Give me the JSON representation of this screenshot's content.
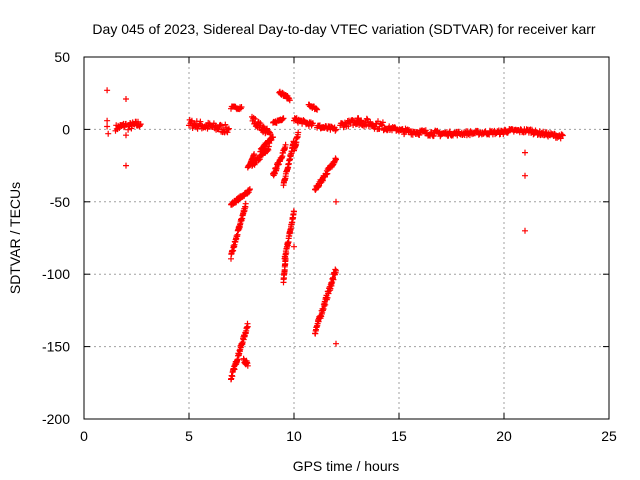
{
  "chart_data": {
    "type": "scatter",
    "title": "Day 045 of 2023, Sidereal Day-to-day VTEC variation (SDTVAR) for receiver karr",
    "xlabel": "GPS time / hours",
    "ylabel": "SDTVAR / TECUs",
    "xlim": [
      0,
      25
    ],
    "ylim": [
      -200,
      50
    ],
    "xticks": [
      0,
      5,
      10,
      15,
      20,
      25
    ],
    "yticks": [
      50,
      0,
      -50,
      -100,
      -150,
      -200
    ],
    "xtick_labels": [
      "0",
      "5",
      "10",
      "15",
      "20",
      "25"
    ],
    "ytick_labels": [
      "50",
      "0",
      "-50",
      "-100",
      "-150",
      "-200"
    ],
    "grid": true,
    "marker": "+",
    "marker_color": "#ff0000",
    "series": [
      {
        "name": "SDTVAR",
        "points": [
          [
            1.1,
            27
          ],
          [
            1.1,
            6
          ],
          [
            1.1,
            2
          ],
          [
            1.15,
            -3
          ],
          [
            2.0,
            21
          ],
          [
            2.0,
            -4
          ],
          [
            2.0,
            -25
          ],
          [
            10.0,
            -81
          ],
          [
            12.0,
            -50
          ],
          [
            12.0,
            -148
          ],
          [
            21.0,
            -16
          ],
          [
            21.0,
            -32
          ],
          [
            21.0,
            -70
          ]
        ],
        "segments": [
          {
            "x0": 1.5,
            "x1": 2.0,
            "y0": 1,
            "y1": 3,
            "spread": 4
          },
          {
            "x0": 2.1,
            "x1": 2.7,
            "y0": 2,
            "y1": 4,
            "spread": 5
          },
          {
            "x0": 5.0,
            "x1": 6.9,
            "y0": 4,
            "y1": 0,
            "spread": 6
          },
          {
            "x0": 7.0,
            "x1": 7.5,
            "y0": 15,
            "y1": 15,
            "spread": 2
          },
          {
            "x0": 7.0,
            "x1": 7.9,
            "y0": -52,
            "y1": -42,
            "spread": 2
          },
          {
            "x0": 7.0,
            "x1": 7.7,
            "y0": -88,
            "y1": -52,
            "spread": 3
          },
          {
            "x0": 7.0,
            "x1": 7.8,
            "y0": -172,
            "y1": -135,
            "spread": 3
          },
          {
            "x0": 7.6,
            "x1": 7.8,
            "y0": -158,
            "y1": -163,
            "spread": 4
          },
          {
            "x0": 7.8,
            "x1": 8.1,
            "y0": -27,
            "y1": -18,
            "spread": 2
          },
          {
            "x0": 8.0,
            "x1": 8.8,
            "y0": -25,
            "y1": -13,
            "spread": 3
          },
          {
            "x0": 8.0,
            "x1": 8.9,
            "y0": 7,
            "y1": -4,
            "spread": 5
          },
          {
            "x0": 8.4,
            "x1": 9.0,
            "y0": -14,
            "y1": -6,
            "spread": 3
          },
          {
            "x0": 9.0,
            "x1": 9.6,
            "y0": -32,
            "y1": -12,
            "spread": 3
          },
          {
            "x0": 9.0,
            "x1": 9.5,
            "y0": 4,
            "y1": 8,
            "spread": 2
          },
          {
            "x0": 9.3,
            "x1": 9.8,
            "y0": 26,
            "y1": 21,
            "spread": 2
          },
          {
            "x0": 9.5,
            "x1": 9.6,
            "y0": -105,
            "y1": -90,
            "spread": 2
          },
          {
            "x0": 9.55,
            "x1": 10.0,
            "y0": -90,
            "y1": -57,
            "spread": 3
          },
          {
            "x0": 9.5,
            "x1": 10.0,
            "y0": -38,
            "y1": -8,
            "spread": 3
          },
          {
            "x0": 10.0,
            "x1": 10.2,
            "y0": -15,
            "y1": -3,
            "spread": 3
          },
          {
            "x0": 10.0,
            "x1": 10.9,
            "y0": 7,
            "y1": 3,
            "spread": 3
          },
          {
            "x0": 10.7,
            "x1": 11.1,
            "y0": 17,
            "y1": 14,
            "spread": 2
          },
          {
            "x0": 11.0,
            "x1": 12.0,
            "y0": -140,
            "y1": -97,
            "spread": 4
          },
          {
            "x0": 11.0,
            "x1": 12.0,
            "y0": -42,
            "y1": -20,
            "spread": 3
          },
          {
            "x0": 11.1,
            "x1": 12.0,
            "y0": 2,
            "y1": 0,
            "spread": 3
          },
          {
            "x0": 12.2,
            "x1": 13.2,
            "y0": 3,
            "y1": 6,
            "spread": 4
          },
          {
            "x0": 13.0,
            "x1": 14.3,
            "y0": 6,
            "y1": 2,
            "spread": 6
          },
          {
            "x0": 14.3,
            "x1": 15.0,
            "y0": 1,
            "y1": 0,
            "spread": 3
          },
          {
            "x0": 15.0,
            "x1": 17.0,
            "y0": -1,
            "y1": -3,
            "spread": 4
          },
          {
            "x0": 17.0,
            "x1": 20.0,
            "y0": -3,
            "y1": -2,
            "spread": 3
          },
          {
            "x0": 20.0,
            "x1": 21.4,
            "y0": -1,
            "y1": -1,
            "spread": 3
          },
          {
            "x0": 21.4,
            "x1": 22.8,
            "y0": -2,
            "y1": -5,
            "spread": 3
          }
        ]
      }
    ]
  }
}
